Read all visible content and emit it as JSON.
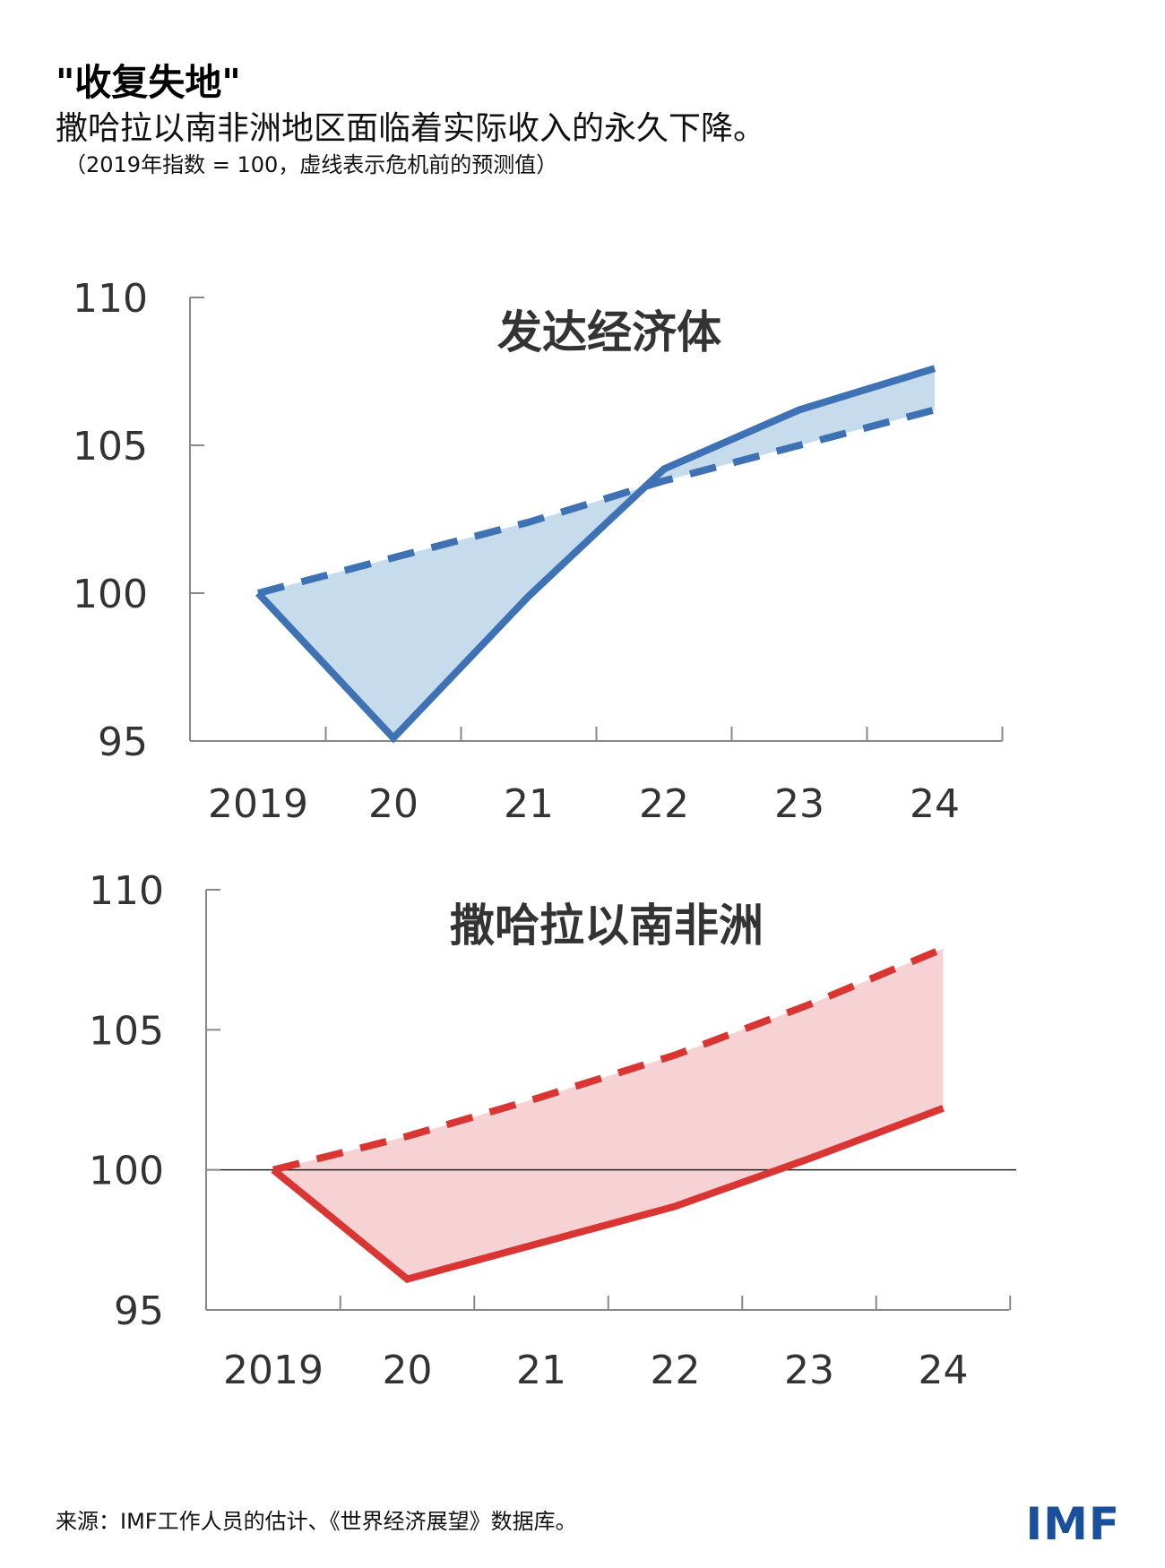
{
  "header": {
    "title": "\"收复失地\"",
    "subtitle": "撒哈拉以南非洲地区面临着实际收入的永久下降。",
    "note": "（2019年指数 = 100，虚线表示危机前的预测值）"
  },
  "footer": {
    "source": "来源：IMF工作人员的估计、《世界经济展望》数据库。",
    "logo": "IMF"
  },
  "colors": {
    "advanced_line": "#3f72b5",
    "advanced_fill": "#c6dcec",
    "ssa_line": "#d93633",
    "ssa_fill": "#f6d2d4",
    "axis": "#888888"
  },
  "chart_data": [
    {
      "type": "line",
      "title": "发达经济体",
      "categories": [
        "2019",
        "20",
        "21",
        "22",
        "23",
        "24"
      ],
      "ylim": [
        95,
        110
      ],
      "yticks": [
        "110",
        "105",
        "100",
        "95"
      ],
      "series": [
        {
          "style": "solid",
          "values": [
            100,
            95.1,
            99.9,
            104.2,
            106.2,
            107.6
          ]
        },
        {
          "style": "dashed",
          "values": [
            100,
            101.2,
            102.4,
            103.8,
            105.0,
            106.2
          ]
        }
      ],
      "shaded_between_series": true,
      "reference_line_100": false
    },
    {
      "type": "line",
      "title": "撒哈拉以南非洲",
      "categories": [
        "2019",
        "20",
        "21",
        "22",
        "23",
        "24"
      ],
      "ylim": [
        95,
        110
      ],
      "yticks": [
        "110",
        "105",
        "100",
        "95"
      ],
      "series": [
        {
          "style": "solid",
          "values": [
            100,
            96.1,
            97.4,
            98.7,
            100.4,
            102.2
          ]
        },
        {
          "style": "dashed",
          "values": [
            100,
            101.2,
            102.6,
            104.1,
            105.9,
            107.9
          ]
        }
      ],
      "shaded_between_series": true,
      "reference_line_100": true
    }
  ]
}
